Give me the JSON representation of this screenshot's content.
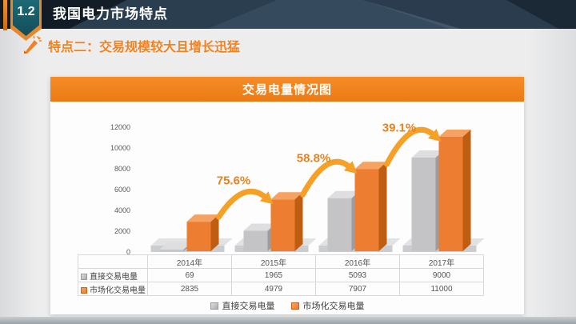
{
  "header": {
    "badge": "1.2",
    "title": "我国电力市场特点"
  },
  "subtitle": {
    "icon": "magic-wand-icon",
    "text": "特点二：交易规模较大且增长迅猛"
  },
  "card": {
    "title": "交易电量情况图"
  },
  "colors": {
    "accent_orange": "#f08223",
    "bar_orange": "#ed7d31",
    "bar_gray": "#c4c4c7",
    "arrow_orange": "#f5a026",
    "topbar_navy": "#1d2b3a",
    "badge_teal": "#155e6b"
  },
  "chart_data": {
    "type": "bar",
    "style": "3d-clustered-column",
    "title": "交易电量情况图",
    "categories": [
      "2014年",
      "2015年",
      "2016年",
      "2017年"
    ],
    "series": [
      {
        "name": "直接交易电量",
        "color": "#c4c4c7",
        "values": [
          69,
          1965,
          5093,
          9000
        ]
      },
      {
        "name": "市场化交易电量",
        "color": "#ed7d31",
        "values": [
          2835,
          4979,
          7907,
          11000
        ]
      }
    ],
    "growth_labels": [
      "75.6%",
      "58.8%",
      "39.1%"
    ],
    "y_ticks": [
      0,
      2000,
      4000,
      6000,
      8000,
      10000,
      12000
    ],
    "ylim": [
      0,
      12000
    ],
    "grid": false,
    "legend_position": "bottom",
    "data_table_shown": true
  }
}
